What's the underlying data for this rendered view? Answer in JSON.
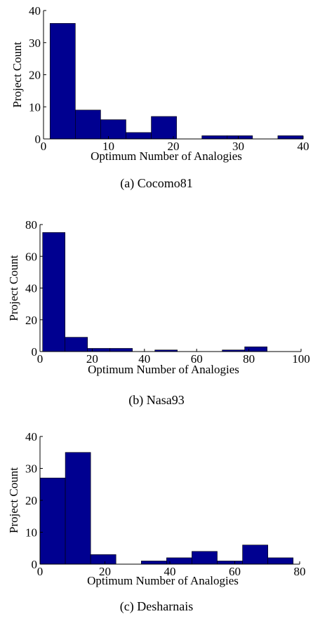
{
  "chart_data": [
    {
      "type": "histogram",
      "caption": "(a) Cocomo81",
      "xlabel": "Optimum Number of Analogies",
      "ylabel": "Project Count",
      "color": "#000090",
      "bins": [
        1,
        4.9,
        8.8,
        12.7,
        16.6,
        20.5,
        24.4,
        28.3,
        32.2,
        36.1,
        40
      ],
      "values": [
        36,
        9,
        6,
        2,
        7,
        0,
        1,
        1,
        0,
        1
      ],
      "xlim": [
        0,
        40
      ],
      "xticks": [
        0,
        10,
        20,
        30,
        40
      ],
      "ylim": [
        0,
        40
      ],
      "yticks": [
        0,
        10,
        20,
        30,
        40
      ]
    },
    {
      "type": "histogram",
      "caption": "(b) Nasa93",
      "xlabel": "Optimum Number of Analogies",
      "ylabel": "Project Count",
      "color": "#000090",
      "bins": [
        1,
        9.6,
        18.2,
        26.8,
        35.4,
        44,
        52.6,
        61.2,
        69.8,
        78.4,
        87
      ],
      "values": [
        75,
        9,
        2,
        2,
        0,
        1,
        0,
        0,
        1,
        3
      ],
      "xlim": [
        0,
        100
      ],
      "xticks": [
        0,
        20,
        40,
        60,
        80,
        100
      ],
      "ylim": [
        0,
        80
      ],
      "yticks": [
        0,
        20,
        40,
        60,
        80
      ]
    },
    {
      "type": "histogram",
      "caption": "(c) Desharnais",
      "xlabel": "Optimum Number of Analogies",
      "ylabel": "Project Count",
      "color": "#000090",
      "bins": [
        0,
        7.8,
        15.6,
        23.4,
        31.2,
        39,
        46.8,
        54.6,
        62.4,
        70.2,
        78
      ],
      "values": [
        27,
        35,
        3,
        0,
        1,
        2,
        4,
        1,
        6,
        2
      ],
      "xlim": [
        0,
        80
      ],
      "xticks": [
        0,
        20,
        40,
        60,
        80
      ],
      "ylim": [
        0,
        40
      ],
      "yticks": [
        0,
        10,
        20,
        30,
        40
      ]
    }
  ]
}
